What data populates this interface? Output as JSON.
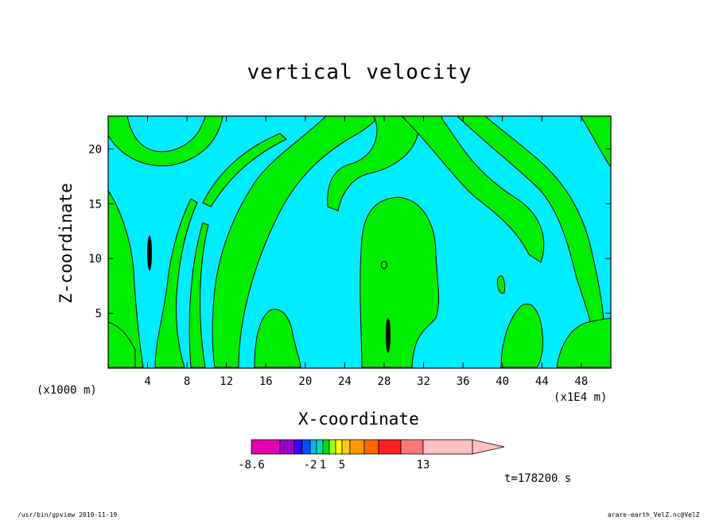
{
  "chart_data": {
    "type": "heatmap",
    "title": "vertical velocity",
    "xlabel": "X-coordinate",
    "ylabel": "Z-coordinate",
    "x_units": "(x1000 m)",
    "x_scale": "(x1E4 m)",
    "xlim": [
      0,
      51
    ],
    "ylim": [
      0,
      23
    ],
    "x_ticks": [
      4,
      8,
      12,
      16,
      20,
      24,
      28,
      32,
      36,
      40,
      44,
      48
    ],
    "y_ticks": [
      5,
      10,
      15,
      20
    ],
    "colorbar": {
      "colors": [
        "#e600b4",
        "#9b00c8",
        "#3c00ff",
        "#0050ff",
        "#00b4ff",
        "#00e0b0",
        "#00e000",
        "#aaff00",
        "#ffff00",
        "#ffcc00",
        "#ff9900",
        "#ff6600",
        "#ff2020",
        "#ff7878",
        "#ffc0c0"
      ],
      "labels": [
        "-8.6",
        "-2",
        "1",
        "5",
        "13"
      ],
      "label_boxes": [
        0,
        4,
        6,
        9,
        14
      ]
    },
    "fill_colors": {
      "positive": "#00ee00",
      "negative": "#00ecff"
    },
    "features": [
      {
        "x": 4.2,
        "z": 10.5,
        "sign": "strong-positive"
      },
      {
        "x": 28.4,
        "z": 3.0,
        "sign": "strong-positive"
      }
    ]
  },
  "annotations": {
    "time": "t=178200 s",
    "footer_left": "/usr/bin/gpview   2010-11-19",
    "footer_right": "arare-earth_VelZ.nc@VelZ"
  }
}
